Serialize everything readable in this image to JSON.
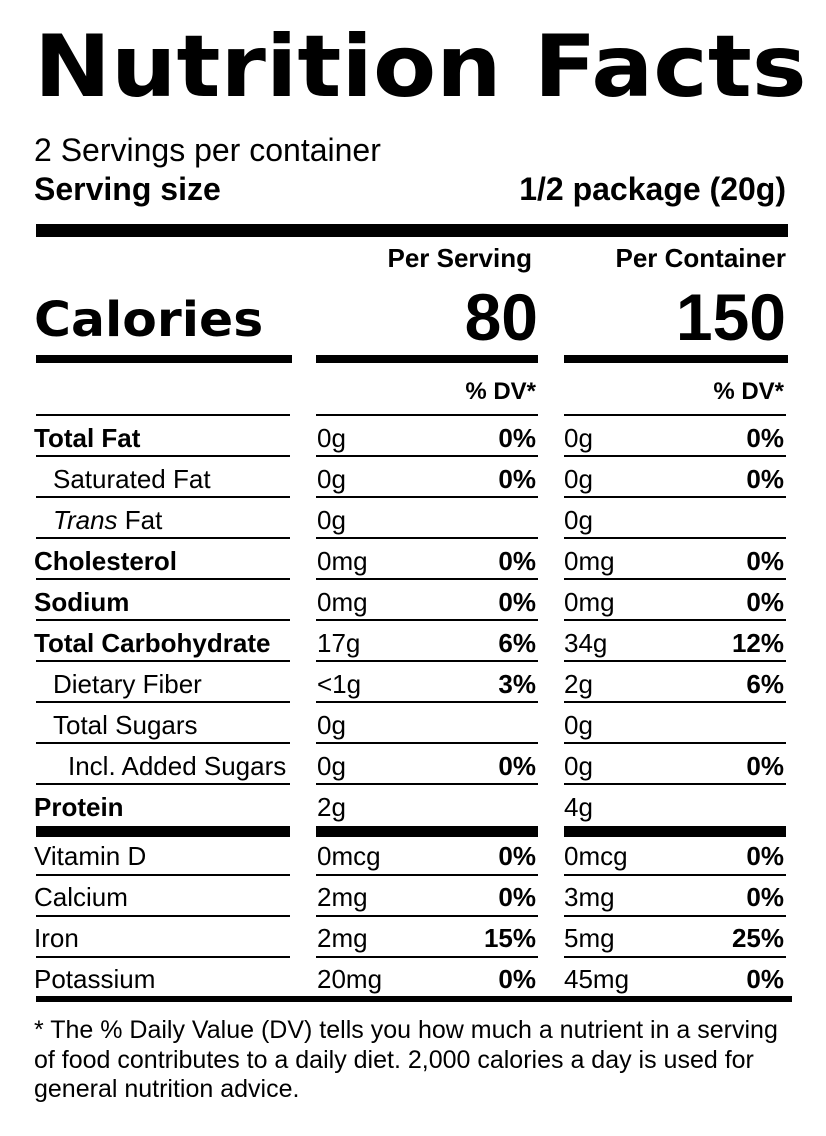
{
  "title": "Nutrition Facts",
  "servings_per_container": "2 Servings per container",
  "serving_size": {
    "label": "Serving size",
    "value": "1/2 package (20g)"
  },
  "column_headers": {
    "per_serving": "Per Serving",
    "per_container": "Per Container"
  },
  "calories": {
    "label": "Calories",
    "per_serving": "80",
    "per_container": "150"
  },
  "dv_header": "% DV*",
  "nutrients": [
    {
      "label": "Total Fat",
      "style": "bold",
      "serving_amount": "0g",
      "serving_dv": "0%",
      "container_amount": "0g",
      "container_dv": "0%"
    },
    {
      "label": "Saturated Fat",
      "style": "indent",
      "serving_amount": "0g",
      "serving_dv": "0%",
      "container_amount": "0g",
      "container_dv": "0%"
    },
    {
      "label_italic": "Trans",
      "label_rest": " Fat",
      "style": "indent",
      "serving_amount": "0g",
      "serving_dv": "",
      "container_amount": "0g",
      "container_dv": ""
    },
    {
      "label": "Cholesterol",
      "style": "bold",
      "serving_amount": "0mg",
      "serving_dv": "0%",
      "container_amount": "0mg",
      "container_dv": "0%"
    },
    {
      "label": "Sodium",
      "style": "bold",
      "serving_amount": "0mg",
      "serving_dv": "0%",
      "container_amount": "0mg",
      "container_dv": "0%"
    },
    {
      "label": "Total Carbohydrate",
      "style": "bold",
      "serving_amount": "17g",
      "serving_dv": "6%",
      "container_amount": "34g",
      "container_dv": "12%"
    },
    {
      "label": "Dietary Fiber",
      "style": "indent",
      "serving_amount": "<1g",
      "serving_dv": "3%",
      "container_amount": "2g",
      "container_dv": "6%"
    },
    {
      "label": "Total Sugars",
      "style": "indent",
      "serving_amount": "0g",
      "serving_dv": "",
      "container_amount": "0g",
      "container_dv": ""
    },
    {
      "label": "Incl. Added Sugars",
      "style": "indent2",
      "serving_amount": "0g",
      "serving_dv": "0%",
      "container_amount": "0g",
      "container_dv": "0%"
    },
    {
      "label": "Protein",
      "style": "bold",
      "serving_amount": "2g",
      "serving_dv": "",
      "container_amount": "4g",
      "container_dv": ""
    }
  ],
  "vitamins": [
    {
      "label": "Vitamin D",
      "serving_amount": "0mcg",
      "serving_dv": "0%",
      "container_amount": "0mcg",
      "container_dv": "0%"
    },
    {
      "label": "Calcium",
      "serving_amount": "2mg",
      "serving_dv": "0%",
      "container_amount": "3mg",
      "container_dv": "0%"
    },
    {
      "label": "Iron",
      "serving_amount": "2mg",
      "serving_dv": "15%",
      "container_amount": "5mg",
      "container_dv": "25%"
    },
    {
      "label": "Potassium",
      "serving_amount": "20mg",
      "serving_dv": "0%",
      "container_amount": "45mg",
      "container_dv": "0%"
    }
  ],
  "footnote": "* The % Daily Value (DV) tells you how much a nutrient in a serving of food contributes to a daily diet. 2,000 calories a day is used for general nutrition advice."
}
